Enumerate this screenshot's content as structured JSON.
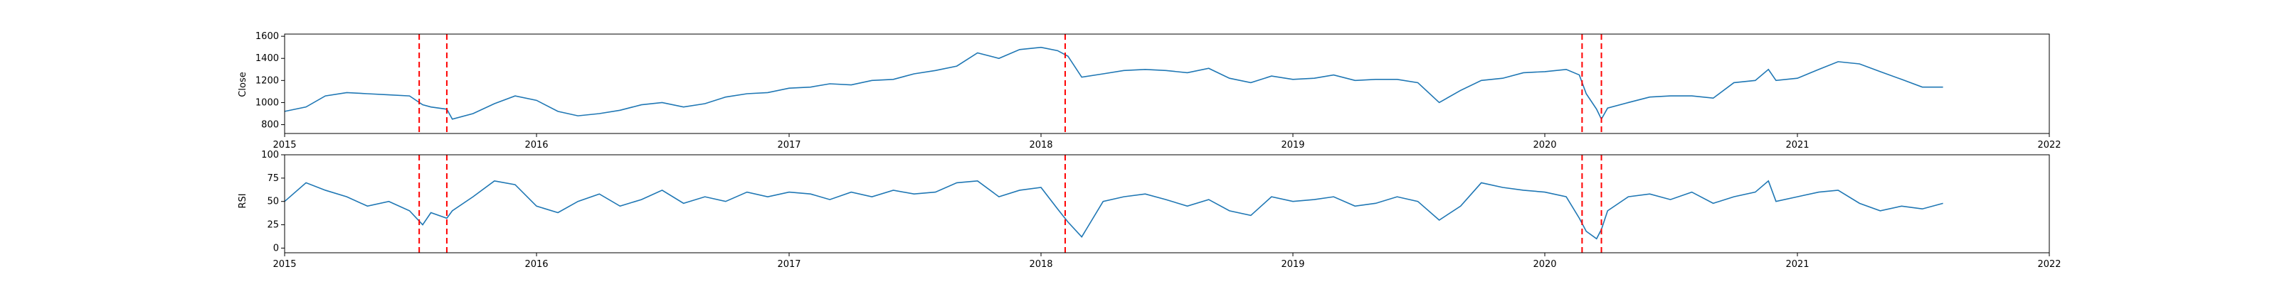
{
  "chart_data": [
    {
      "type": "line",
      "ylabel": "Close",
      "xlim": [
        "2015-01-01",
        "2022-01-01"
      ],
      "ylim": [
        720,
        1620
      ],
      "x_ticks": [
        "2015",
        "2016",
        "2017",
        "2018",
        "2019",
        "2020",
        "2021",
        "2022"
      ],
      "y_ticks": [
        800,
        1000,
        1200,
        1400,
        1600
      ],
      "line_color": "#1f77b4",
      "x": [
        "2015-01-01",
        "2015-02-01",
        "2015-03-01",
        "2015-04-01",
        "2015-05-01",
        "2015-06-01",
        "2015-07-01",
        "2015-07-20",
        "2015-08-01",
        "2015-08-24",
        "2015-09-01",
        "2015-10-01",
        "2015-11-01",
        "2015-12-01",
        "2016-01-01",
        "2016-02-01",
        "2016-03-01",
        "2016-04-01",
        "2016-05-01",
        "2016-06-01",
        "2016-07-01",
        "2016-08-01",
        "2016-09-01",
        "2016-10-01",
        "2016-11-01",
        "2016-12-01",
        "2017-01-01",
        "2017-02-01",
        "2017-03-01",
        "2017-04-01",
        "2017-05-01",
        "2017-06-01",
        "2017-07-01",
        "2017-08-01",
        "2017-09-01",
        "2017-10-01",
        "2017-11-01",
        "2017-12-01",
        "2018-01-01",
        "2018-01-25",
        "2018-02-09",
        "2018-03-01",
        "2018-04-01",
        "2018-05-01",
        "2018-06-01",
        "2018-07-01",
        "2018-08-01",
        "2018-09-01",
        "2018-10-01",
        "2018-11-01",
        "2018-12-01",
        "2019-01-01",
        "2019-02-01",
        "2019-03-01",
        "2019-04-01",
        "2019-05-01",
        "2019-06-01",
        "2019-07-01",
        "2019-08-01",
        "2019-09-01",
        "2019-10-01",
        "2019-11-01",
        "2019-12-01",
        "2020-01-01",
        "2020-02-01",
        "2020-02-20",
        "2020-03-01",
        "2020-03-16",
        "2020-03-23",
        "2020-04-01",
        "2020-05-01",
        "2020-06-01",
        "2020-07-01",
        "2020-08-01",
        "2020-09-01",
        "2020-10-01",
        "2020-11-01",
        "2020-11-20",
        "2020-12-01",
        "2021-01-01",
        "2021-02-01",
        "2021-03-01",
        "2021-04-01",
        "2021-05-01",
        "2021-06-01",
        "2021-07-01",
        "2021-07-31"
      ],
      "values": [
        920,
        960,
        1060,
        1090,
        1080,
        1070,
        1060,
        980,
        960,
        940,
        850,
        900,
        990,
        1060,
        1020,
        920,
        880,
        900,
        930,
        980,
        1000,
        960,
        990,
        1050,
        1080,
        1090,
        1130,
        1140,
        1170,
        1160,
        1200,
        1210,
        1260,
        1290,
        1330,
        1450,
        1400,
        1480,
        1500,
        1470,
        1420,
        1230,
        1260,
        1290,
        1300,
        1290,
        1270,
        1310,
        1220,
        1180,
        1240,
        1210,
        1220,
        1250,
        1200,
        1210,
        1210,
        1180,
        1000,
        1110,
        1200,
        1220,
        1270,
        1280,
        1300,
        1250,
        1080,
        940,
        850,
        950,
        1000,
        1050,
        1060,
        1060,
        1040,
        1180,
        1200,
        1300,
        1200,
        1220,
        1300,
        1370,
        1350,
        1280,
        1210,
        1140,
        1140
      ]
    },
    {
      "type": "line",
      "ylabel": "RSI",
      "xlim": [
        "2015-01-01",
        "2022-01-01"
      ],
      "ylim": [
        -5,
        100
      ],
      "x_ticks": [
        "2015",
        "2016",
        "2017",
        "2018",
        "2019",
        "2020",
        "2021",
        "2022"
      ],
      "y_ticks": [
        0,
        25,
        50,
        75,
        100
      ],
      "line_color": "#1f77b4",
      "x": [
        "2015-01-01",
        "2015-02-01",
        "2015-03-01",
        "2015-04-01",
        "2015-05-01",
        "2015-06-01",
        "2015-07-01",
        "2015-07-20",
        "2015-08-01",
        "2015-08-24",
        "2015-09-01",
        "2015-10-01",
        "2015-11-01",
        "2015-12-01",
        "2016-01-01",
        "2016-02-01",
        "2016-03-01",
        "2016-04-01",
        "2016-05-01",
        "2016-06-01",
        "2016-07-01",
        "2016-08-01",
        "2016-09-01",
        "2016-10-01",
        "2016-11-01",
        "2016-12-01",
        "2017-01-01",
        "2017-02-01",
        "2017-03-01",
        "2017-04-01",
        "2017-05-01",
        "2017-06-01",
        "2017-07-01",
        "2017-08-01",
        "2017-09-01",
        "2017-10-01",
        "2017-11-01",
        "2017-12-01",
        "2018-01-01",
        "2018-01-25",
        "2018-02-09",
        "2018-03-01",
        "2018-04-01",
        "2018-05-01",
        "2018-06-01",
        "2018-07-01",
        "2018-08-01",
        "2018-09-01",
        "2018-10-01",
        "2018-11-01",
        "2018-12-01",
        "2019-01-01",
        "2019-02-01",
        "2019-03-01",
        "2019-04-01",
        "2019-05-01",
        "2019-06-01",
        "2019-07-01",
        "2019-08-01",
        "2019-09-01",
        "2019-10-01",
        "2019-11-01",
        "2019-12-01",
        "2020-01-01",
        "2020-02-01",
        "2020-02-20",
        "2020-03-01",
        "2020-03-16",
        "2020-03-23",
        "2020-04-01",
        "2020-05-01",
        "2020-06-01",
        "2020-07-01",
        "2020-08-01",
        "2020-09-01",
        "2020-10-01",
        "2020-11-01",
        "2020-11-20",
        "2020-12-01",
        "2021-01-01",
        "2021-02-01",
        "2021-03-01",
        "2021-04-01",
        "2021-05-01",
        "2021-06-01",
        "2021-07-01",
        "2021-07-31"
      ],
      "values": [
        50,
        70,
        62,
        55,
        45,
        50,
        40,
        25,
        38,
        32,
        40,
        55,
        72,
        68,
        45,
        38,
        50,
        58,
        45,
        52,
        62,
        48,
        55,
        50,
        60,
        55,
        60,
        58,
        52,
        60,
        55,
        62,
        58,
        60,
        70,
        72,
        55,
        62,
        65,
        42,
        28,
        12,
        50,
        55,
        58,
        52,
        45,
        52,
        40,
        35,
        55,
        50,
        52,
        55,
        45,
        48,
        55,
        50,
        30,
        45,
        70,
        65,
        62,
        60,
        55,
        32,
        18,
        10,
        20,
        40,
        55,
        58,
        52,
        60,
        48,
        55,
        60,
        72,
        50,
        55,
        60,
        62,
        48,
        40,
        45,
        42,
        48
      ]
    }
  ],
  "vlines": {
    "color": "#ff0000",
    "x": [
      "2015-07-15",
      "2015-08-24",
      "2018-02-05",
      "2020-02-24",
      "2020-03-23"
    ]
  }
}
